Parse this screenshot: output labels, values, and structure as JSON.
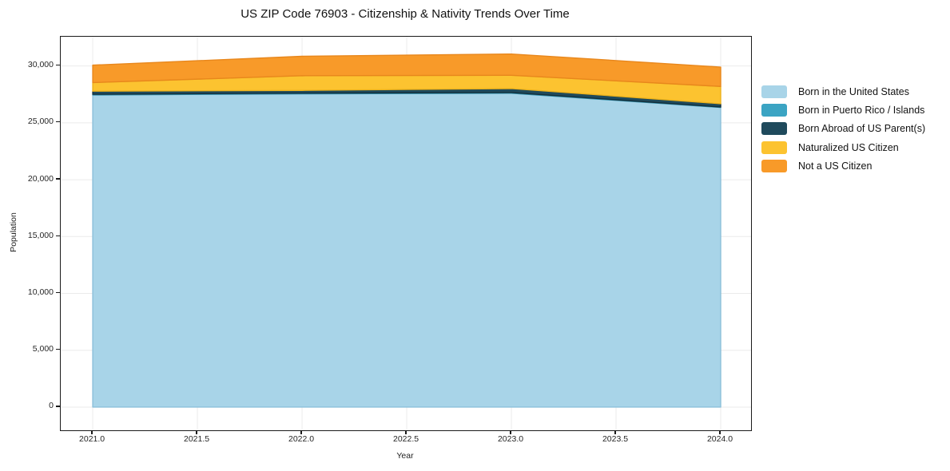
{
  "chart_data": {
    "type": "area",
    "stacked": true,
    "title": "US ZIP Code 76903 - Citizenship & Nativity Trends Over Time",
    "xlabel": "Year",
    "ylabel": "Population",
    "x": [
      2021,
      2022,
      2023,
      2024
    ],
    "series": [
      {
        "name": "Born in the United States",
        "color": "#a8d4e8",
        "edge": "#8cc0da",
        "values": [
          27450,
          27550,
          27600,
          26350
        ]
      },
      {
        "name": "Born in Puerto Rico / Islands",
        "color": "#3ba4c3",
        "edge": "#2e8da9",
        "values": [
          60,
          60,
          60,
          40
        ]
      },
      {
        "name": "Born Abroad of US Parent(s)",
        "color": "#1f4a5c",
        "edge": "#142f3b",
        "values": [
          270,
          240,
          350,
          290
        ]
      },
      {
        "name": "Naturalized US Citizen",
        "color": "#fcc330",
        "edge": "#edb31c",
        "values": [
          760,
          1290,
          1170,
          1520
        ]
      },
      {
        "name": "Not a US Citizen",
        "color": "#f89a29",
        "edge": "#e8871c",
        "values": [
          1530,
          1710,
          1870,
          1700
        ]
      }
    ],
    "x_tick_values": [
      2021.0,
      2021.5,
      2022.0,
      2022.5,
      2023.0,
      2023.5,
      2024.0
    ],
    "x_tick_labels": [
      "2021.0",
      "2021.5",
      "2022.0",
      "2022.5",
      "2023.0",
      "2023.5",
      "2024.0"
    ],
    "y_tick_values": [
      0,
      5000,
      10000,
      15000,
      20000,
      25000,
      30000
    ],
    "y_tick_labels": [
      "0",
      "5,000",
      "10,000",
      "15,000",
      "20,000",
      "25,000",
      "30,000"
    ],
    "xlim": [
      2020.847,
      2024.145
    ],
    "ylim": [
      -2037,
      32570
    ],
    "grid": true,
    "grid_color": "#ebebeb",
    "legend_position": "right",
    "baseline": 0
  }
}
